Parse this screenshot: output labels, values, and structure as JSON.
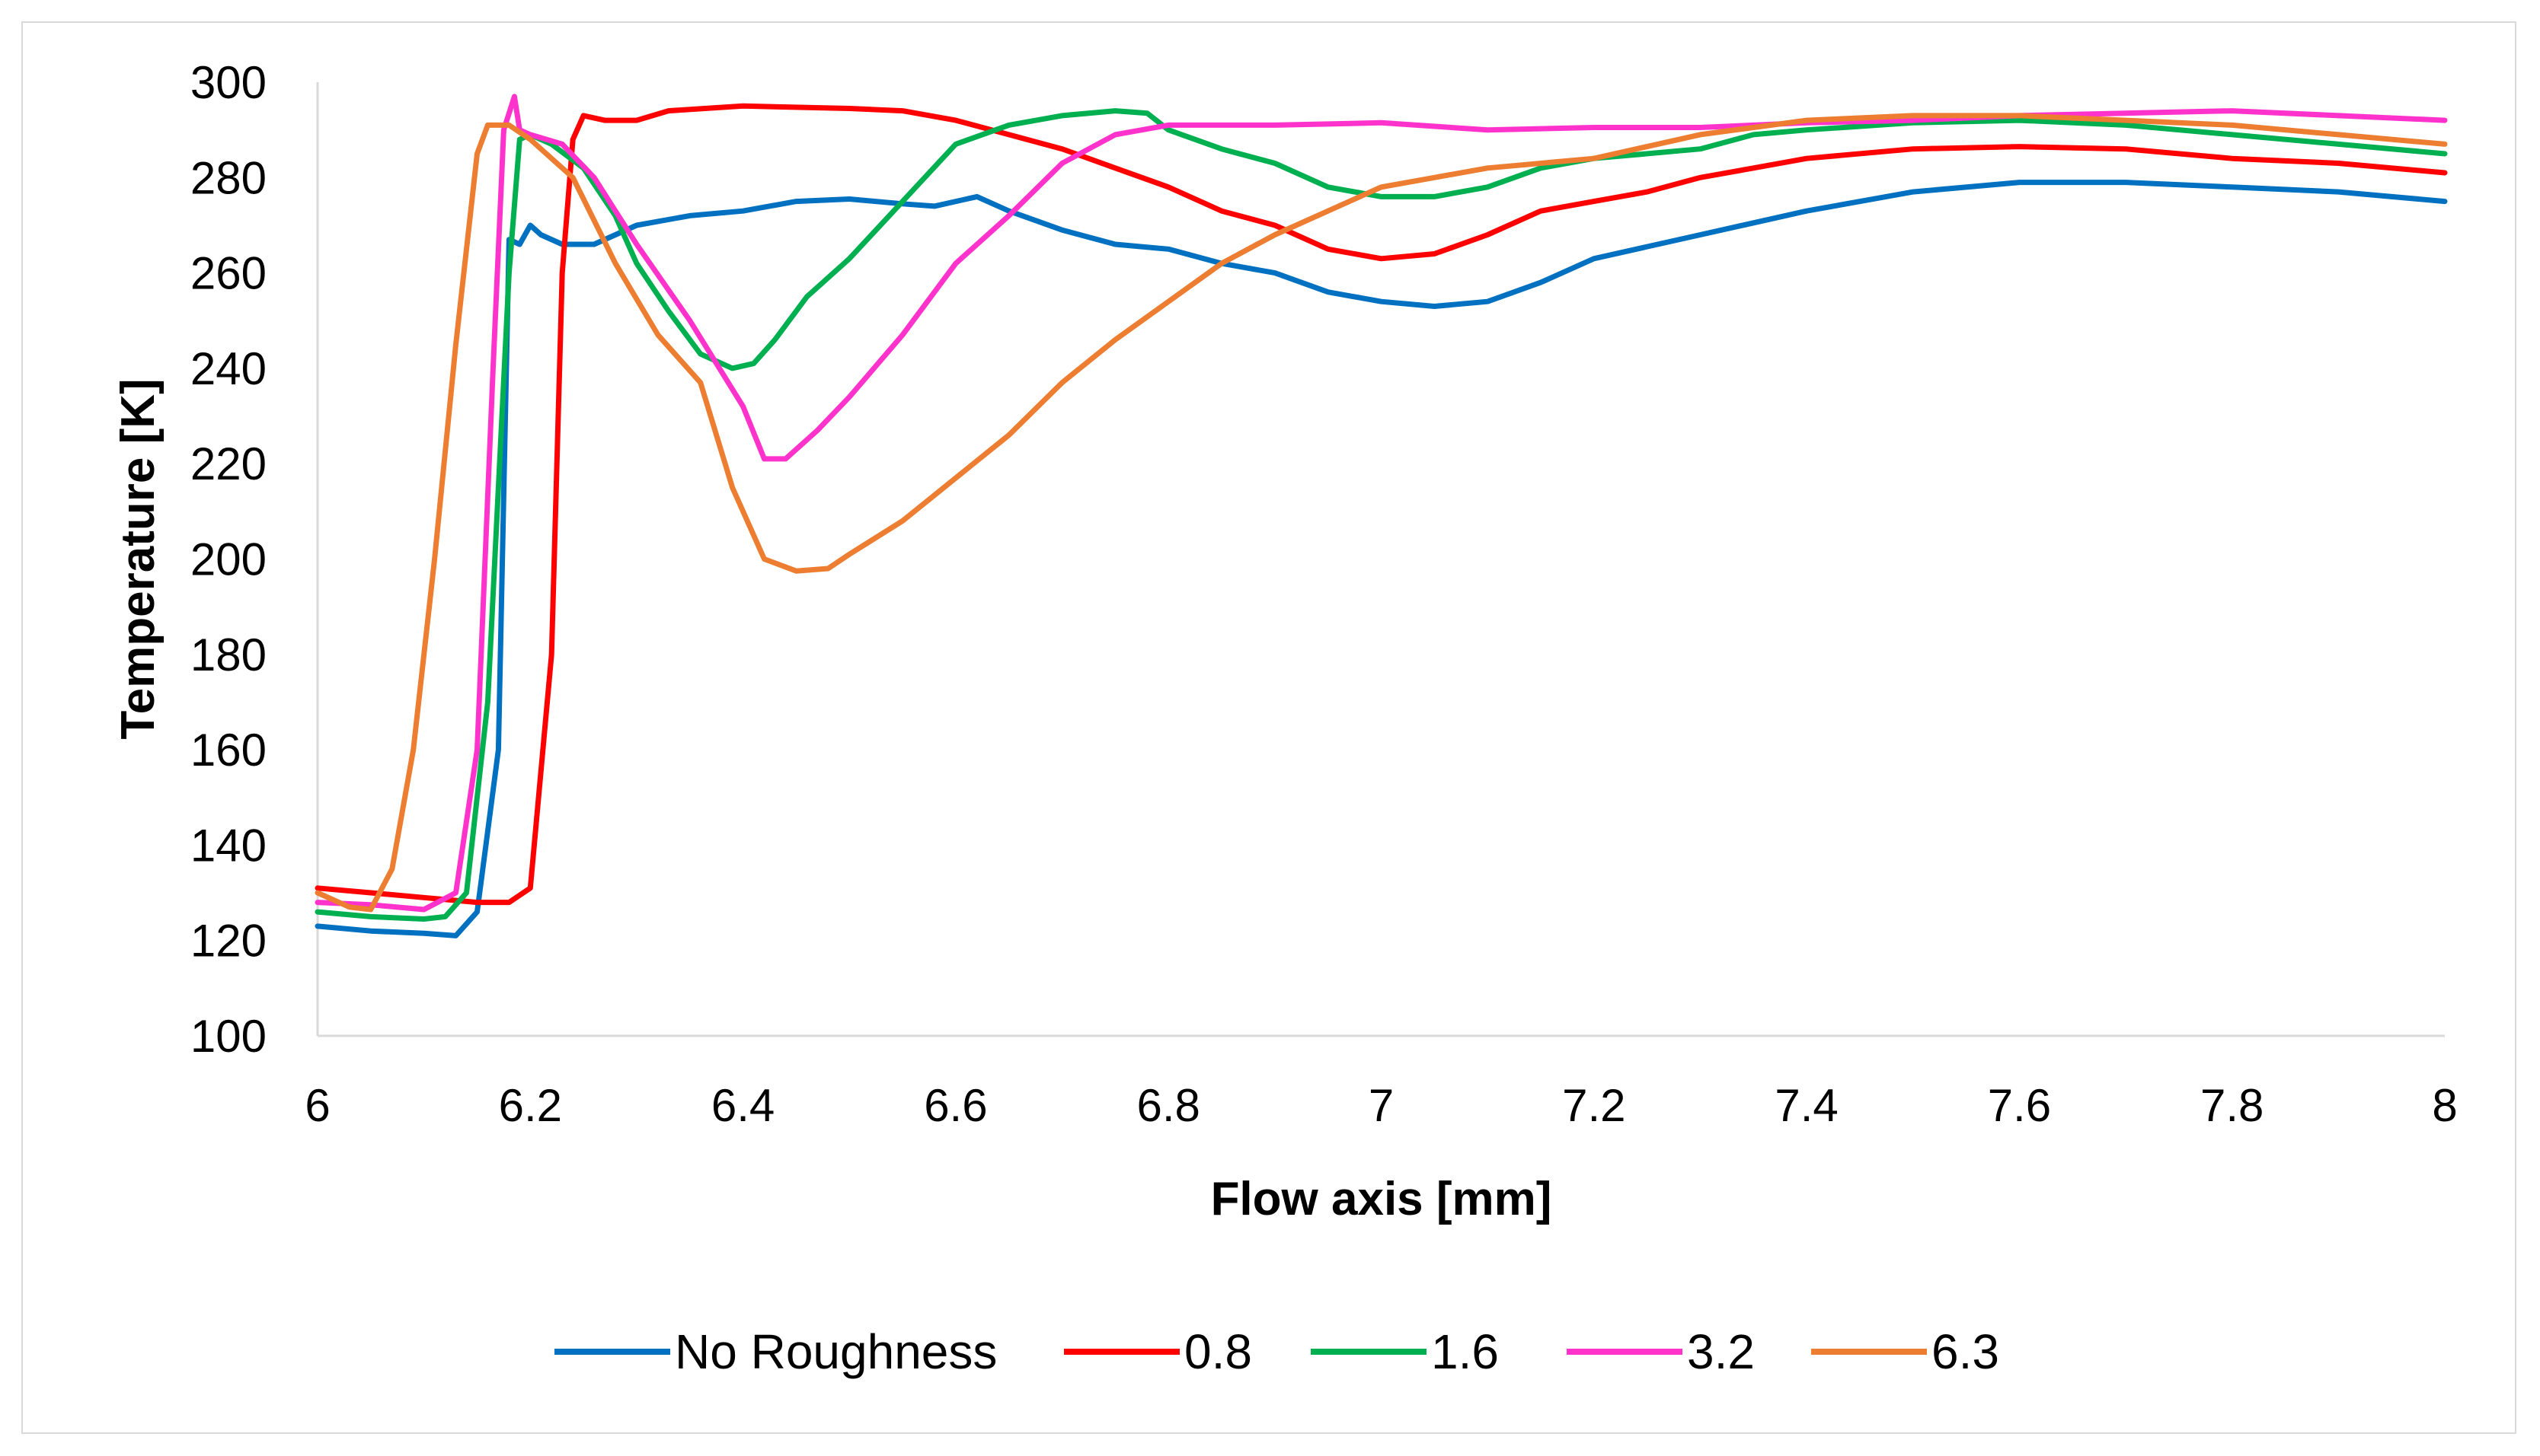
{
  "chart_data": {
    "type": "line",
    "title": "",
    "xlabel": "Flow axis [mm]",
    "ylabel": "Temperature [K]",
    "xlim": [
      6,
      8
    ],
    "ylim": [
      100,
      300
    ],
    "x_ticks": [
      6,
      6.2,
      6.4,
      6.6,
      6.8,
      7,
      7.2,
      7.4,
      7.6,
      7.8,
      8
    ],
    "x_tick_labels": [
      "6",
      "6.2",
      "6.4",
      "6.6",
      "6.8",
      "7",
      "7.2",
      "7.4",
      "7.6",
      "7.8",
      "8"
    ],
    "y_ticks": [
      100,
      120,
      140,
      160,
      180,
      200,
      220,
      240,
      260,
      280,
      300
    ],
    "y_tick_labels": [
      "100",
      "120",
      "140",
      "160",
      "180",
      "200",
      "220",
      "240",
      "260",
      "280",
      "300"
    ],
    "grid": false,
    "legend_position": "bottom",
    "series": [
      {
        "name": "No Roughness",
        "color": "#0070C0",
        "points": [
          [
            6.0,
            123
          ],
          [
            6.05,
            122
          ],
          [
            6.1,
            121.5
          ],
          [
            6.13,
            121
          ],
          [
            6.15,
            126
          ],
          [
            6.17,
            160
          ],
          [
            6.18,
            267
          ],
          [
            6.19,
            266
          ],
          [
            6.2,
            270
          ],
          [
            6.21,
            268
          ],
          [
            6.23,
            266
          ],
          [
            6.26,
            266
          ],
          [
            6.3,
            270
          ],
          [
            6.35,
            272
          ],
          [
            6.4,
            273
          ],
          [
            6.45,
            275
          ],
          [
            6.5,
            275.5
          ],
          [
            6.55,
            274.5
          ],
          [
            6.58,
            274
          ],
          [
            6.62,
            276
          ],
          [
            6.65,
            273
          ],
          [
            6.7,
            269
          ],
          [
            6.75,
            266
          ],
          [
            6.8,
            265
          ],
          [
            6.85,
            262
          ],
          [
            6.9,
            260
          ],
          [
            6.95,
            256
          ],
          [
            7.0,
            254
          ],
          [
            7.05,
            253
          ],
          [
            7.1,
            254
          ],
          [
            7.15,
            258
          ],
          [
            7.2,
            263
          ],
          [
            7.3,
            268
          ],
          [
            7.4,
            273
          ],
          [
            7.5,
            277
          ],
          [
            7.6,
            279
          ],
          [
            7.7,
            279
          ],
          [
            7.8,
            278
          ],
          [
            7.9,
            277
          ],
          [
            8.0,
            275
          ]
        ]
      },
      {
        "name": "0.8",
        "color": "#FF0000",
        "points": [
          [
            6.0,
            131
          ],
          [
            6.05,
            130
          ],
          [
            6.1,
            129
          ],
          [
            6.15,
            128
          ],
          [
            6.18,
            128
          ],
          [
            6.2,
            131
          ],
          [
            6.22,
            180
          ],
          [
            6.23,
            260
          ],
          [
            6.24,
            288
          ],
          [
            6.25,
            293
          ],
          [
            6.27,
            292
          ],
          [
            6.3,
            292
          ],
          [
            6.33,
            294
          ],
          [
            6.4,
            295
          ],
          [
            6.5,
            294.5
          ],
          [
            6.55,
            294
          ],
          [
            6.6,
            292
          ],
          [
            6.65,
            289
          ],
          [
            6.7,
            286
          ],
          [
            6.75,
            282
          ],
          [
            6.8,
            278
          ],
          [
            6.85,
            273
          ],
          [
            6.9,
            270
          ],
          [
            6.95,
            265
          ],
          [
            7.0,
            263
          ],
          [
            7.05,
            264
          ],
          [
            7.1,
            268
          ],
          [
            7.15,
            273
          ],
          [
            7.2,
            275
          ],
          [
            7.25,
            277
          ],
          [
            7.3,
            280
          ],
          [
            7.35,
            282
          ],
          [
            7.4,
            284
          ],
          [
            7.5,
            286
          ],
          [
            7.6,
            286.5
          ],
          [
            7.7,
            286
          ],
          [
            7.8,
            284
          ],
          [
            7.9,
            283
          ],
          [
            8.0,
            281
          ]
        ]
      },
      {
        "name": "1.6",
        "color": "#00B050",
        "points": [
          [
            6.0,
            126
          ],
          [
            6.05,
            125
          ],
          [
            6.1,
            124.5
          ],
          [
            6.12,
            125
          ],
          [
            6.14,
            130
          ],
          [
            6.16,
            170
          ],
          [
            6.18,
            260
          ],
          [
            6.19,
            288
          ],
          [
            6.2,
            289
          ],
          [
            6.22,
            287
          ],
          [
            6.25,
            282
          ],
          [
            6.28,
            272
          ],
          [
            6.3,
            262
          ],
          [
            6.33,
            252
          ],
          [
            6.36,
            243
          ],
          [
            6.39,
            240
          ],
          [
            6.41,
            241
          ],
          [
            6.43,
            246
          ],
          [
            6.46,
            255
          ],
          [
            6.5,
            263
          ],
          [
            6.55,
            275
          ],
          [
            6.6,
            287
          ],
          [
            6.65,
            291
          ],
          [
            6.7,
            293
          ],
          [
            6.75,
            294
          ],
          [
            6.78,
            293.5
          ],
          [
            6.8,
            290
          ],
          [
            6.85,
            286
          ],
          [
            6.9,
            283
          ],
          [
            6.95,
            278
          ],
          [
            7.0,
            276
          ],
          [
            7.05,
            276
          ],
          [
            7.1,
            278
          ],
          [
            7.15,
            282
          ],
          [
            7.2,
            284
          ],
          [
            7.3,
            286
          ],
          [
            7.35,
            289
          ],
          [
            7.4,
            290
          ],
          [
            7.5,
            291.5
          ],
          [
            7.6,
            292
          ],
          [
            7.7,
            291
          ],
          [
            7.8,
            289
          ],
          [
            7.9,
            287
          ],
          [
            8.0,
            285
          ]
        ]
      },
      {
        "name": "3.2",
        "color": "#FF33CC",
        "points": [
          [
            6.0,
            128
          ],
          [
            6.05,
            127.5
          ],
          [
            6.1,
            126.5
          ],
          [
            6.13,
            130
          ],
          [
            6.15,
            160
          ],
          [
            6.165,
            240
          ],
          [
            6.175,
            290
          ],
          [
            6.185,
            297
          ],
          [
            6.19,
            290
          ],
          [
            6.2,
            289
          ],
          [
            6.23,
            287
          ],
          [
            6.26,
            280
          ],
          [
            6.3,
            266
          ],
          [
            6.35,
            250
          ],
          [
            6.4,
            232
          ],
          [
            6.42,
            221
          ],
          [
            6.44,
            221
          ],
          [
            6.47,
            227
          ],
          [
            6.5,
            234
          ],
          [
            6.55,
            247
          ],
          [
            6.6,
            262
          ],
          [
            6.65,
            272
          ],
          [
            6.7,
            283
          ],
          [
            6.75,
            289
          ],
          [
            6.8,
            291
          ],
          [
            6.85,
            291
          ],
          [
            6.9,
            291
          ],
          [
            7.0,
            291.5
          ],
          [
            7.1,
            290
          ],
          [
            7.2,
            290.5
          ],
          [
            7.3,
            290.5
          ],
          [
            7.4,
            291.5
          ],
          [
            7.5,
            292
          ],
          [
            7.6,
            293
          ],
          [
            7.7,
            293.5
          ],
          [
            7.8,
            294
          ],
          [
            7.9,
            293
          ],
          [
            8.0,
            292
          ]
        ]
      },
      {
        "name": "6.3",
        "color": "#ED7D31",
        "points": [
          [
            6.0,
            130
          ],
          [
            6.03,
            127
          ],
          [
            6.05,
            126.5
          ],
          [
            6.07,
            135
          ],
          [
            6.09,
            160
          ],
          [
            6.11,
            200
          ],
          [
            6.13,
            245
          ],
          [
            6.15,
            285
          ],
          [
            6.16,
            291
          ],
          [
            6.18,
            291
          ],
          [
            6.2,
            288
          ],
          [
            6.24,
            280
          ],
          [
            6.28,
            262
          ],
          [
            6.32,
            247
          ],
          [
            6.36,
            237
          ],
          [
            6.39,
            215
          ],
          [
            6.42,
            200
          ],
          [
            6.45,
            197.5
          ],
          [
            6.48,
            198
          ],
          [
            6.5,
            201
          ],
          [
            6.55,
            208
          ],
          [
            6.6,
            217
          ],
          [
            6.65,
            226
          ],
          [
            6.7,
            237
          ],
          [
            6.75,
            246
          ],
          [
            6.8,
            254
          ],
          [
            6.85,
            262
          ],
          [
            6.9,
            268
          ],
          [
            6.95,
            273
          ],
          [
            7.0,
            278
          ],
          [
            7.05,
            280
          ],
          [
            7.1,
            282
          ],
          [
            7.2,
            284
          ],
          [
            7.3,
            289
          ],
          [
            7.4,
            292
          ],
          [
            7.5,
            293
          ],
          [
            7.6,
            293
          ],
          [
            7.7,
            292
          ],
          [
            7.8,
            291
          ],
          [
            7.9,
            289
          ],
          [
            8.0,
            287
          ]
        ]
      }
    ]
  }
}
